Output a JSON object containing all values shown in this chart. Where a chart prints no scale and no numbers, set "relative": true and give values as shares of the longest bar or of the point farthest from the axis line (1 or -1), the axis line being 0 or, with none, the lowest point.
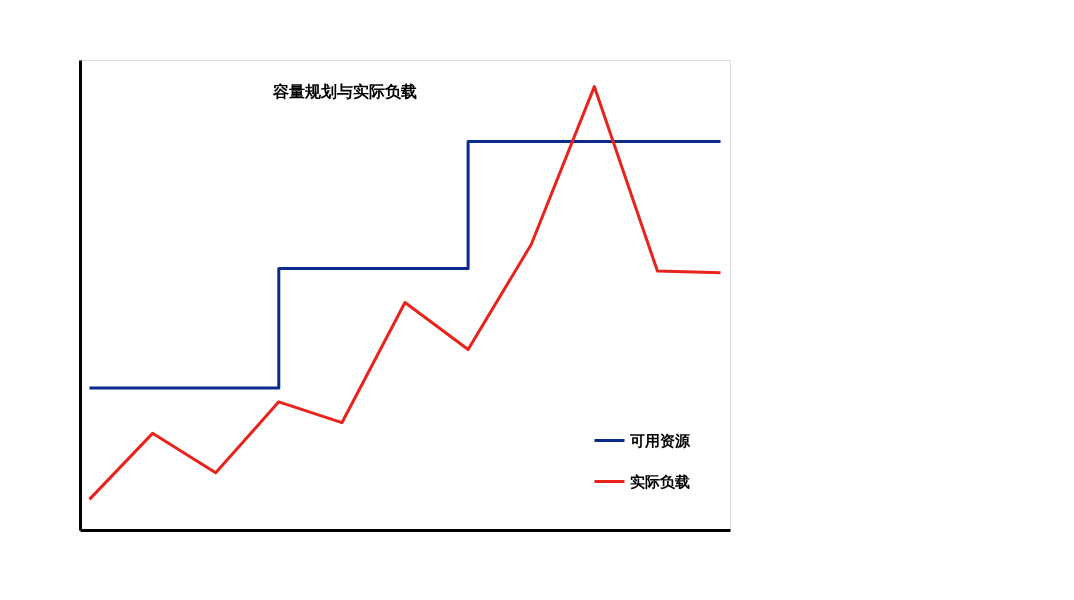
{
  "chart_data": {
    "type": "line",
    "title": "容量规划与实际负载",
    "relative": true,
    "grid": false,
    "legend": "bottom right",
    "marker": "none",
    "line_style": "solid",
    "categories": [
      null,
      null,
      null,
      null,
      null,
      null,
      null,
      null,
      null,
      null,
      null
    ],
    "series": [
      {
        "name": "可用资源",
        "type": "step",
        "color": "#0a2a8c",
        "values": [
          0.32,
          0.32,
          0.32,
          0.59,
          0.59,
          0.59,
          0.876,
          0.876,
          0.876,
          0.876,
          0.876
        ]
      },
      {
        "name": "实际负载",
        "type": "line",
        "color": "#e8231c",
        "values": [
          0.069,
          0.218,
          0.129,
          0.289,
          0.242,
          0.513,
          0.407,
          0.644,
          1.0,
          0.584,
          0.58
        ]
      }
    ]
  }
}
